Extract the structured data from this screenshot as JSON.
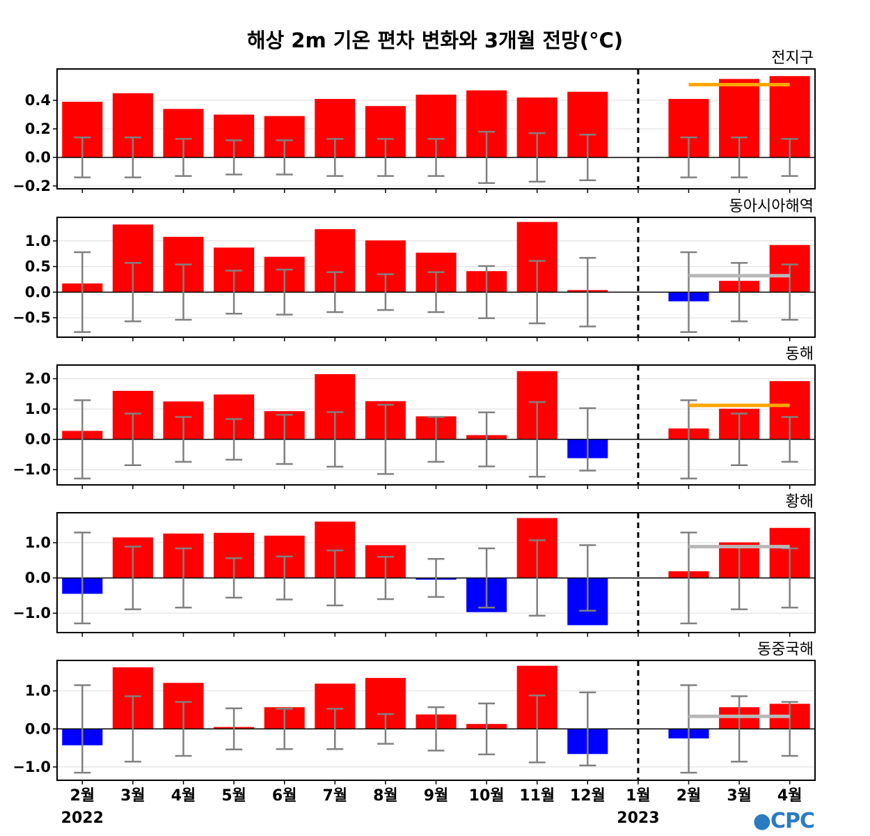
{
  "title": "해상 2m 기온 편차 변화와 3개월 전망(°C)",
  "logo": "CPC",
  "colors": {
    "positive": "#ff0000",
    "negative": "#0000ff",
    "errorbar": "#808080",
    "forecast_orange": "#ffa500",
    "forecast_gray": "#b8b8b8"
  },
  "months": [
    "2월",
    "3월",
    "4월",
    "5월",
    "6월",
    "7월",
    "8월",
    "9월",
    "10월",
    "11월",
    "12월",
    "1월",
    "2월",
    "3월",
    "4월"
  ],
  "years": {
    "y2022": "2022",
    "y2023": "2023"
  },
  "chart_data": [
    {
      "type": "bar",
      "region": "전지구",
      "ylim": [
        -0.22,
        0.62
      ],
      "yticks": [
        -0.2,
        0.0,
        0.2,
        0.4
      ],
      "ytick_labels": [
        "−0.2",
        "0.0",
        "0.2",
        "0.4"
      ],
      "values": [
        0.39,
        0.45,
        0.34,
        0.3,
        0.29,
        0.41,
        0.36,
        0.44,
        0.47,
        0.42,
        0.46,
        null,
        0.41,
        0.55,
        0.57
      ],
      "errorbar": [
        0.14,
        0.14,
        0.13,
        0.12,
        0.12,
        0.13,
        0.13,
        0.13,
        0.18,
        0.17,
        0.16,
        null,
        0.14,
        0.14,
        0.13
      ],
      "forecast_line": {
        "value": 0.51,
        "from": 12,
        "to": 14,
        "color": "orange"
      }
    },
    {
      "type": "bar",
      "region": "동아시아해역",
      "ylim": [
        -0.88,
        1.46
      ],
      "yticks": [
        -0.5,
        0.0,
        0.5,
        1.0
      ],
      "ytick_labels": [
        "−0.5",
        "0.0",
        "0.5",
        "1.0"
      ],
      "values": [
        0.17,
        1.32,
        1.08,
        0.87,
        0.69,
        1.23,
        1.01,
        0.77,
        0.41,
        1.37,
        0.04,
        null,
        -0.18,
        0.22,
        0.92
      ],
      "errorbar": [
        0.78,
        0.57,
        0.54,
        0.42,
        0.44,
        0.39,
        0.35,
        0.39,
        0.51,
        0.61,
        0.67,
        null,
        0.78,
        0.57,
        0.54
      ],
      "forecast_line": {
        "value": 0.32,
        "from": 12,
        "to": 14,
        "color": "gray"
      }
    },
    {
      "type": "bar",
      "region": "동해",
      "ylim": [
        -1.5,
        2.45
      ],
      "yticks": [
        -1.0,
        0.0,
        1.0,
        2.0
      ],
      "ytick_labels": [
        "−1.0",
        "0.0",
        "1.0",
        "2.0"
      ],
      "values": [
        0.28,
        1.6,
        1.25,
        1.48,
        0.93,
        2.15,
        1.26,
        0.76,
        0.14,
        2.25,
        -0.62,
        null,
        0.36,
        1.01,
        1.92
      ],
      "errorbar": [
        1.29,
        0.85,
        0.74,
        0.67,
        0.81,
        0.9,
        1.14,
        0.74,
        0.89,
        1.23,
        1.03,
        null,
        1.29,
        0.85,
        0.74
      ],
      "forecast_line": {
        "value": 1.12,
        "from": 12,
        "to": 14,
        "color": "orange"
      }
    },
    {
      "type": "bar",
      "region": "황해",
      "ylim": [
        -1.55,
        1.85
      ],
      "yticks": [
        -1.0,
        0.0,
        1.0
      ],
      "ytick_labels": [
        "−1.0",
        "0.0",
        "1.0"
      ],
      "values": [
        -0.45,
        1.15,
        1.26,
        1.28,
        1.2,
        1.6,
        0.93,
        -0.05,
        -0.97,
        1.7,
        -1.34,
        null,
        0.19,
        1.01,
        1.42
      ],
      "errorbar": [
        1.29,
        0.89,
        0.84,
        0.56,
        0.61,
        0.78,
        0.6,
        0.54,
        0.84,
        1.07,
        0.93,
        null,
        1.29,
        0.89,
        0.84
      ],
      "forecast_line": {
        "value": 0.89,
        "from": 12,
        "to": 14,
        "color": "gray"
      }
    },
    {
      "type": "bar",
      "region": "동중국해",
      "ylim": [
        -1.35,
        1.8
      ],
      "yticks": [
        -1.0,
        0.0,
        1.0
      ],
      "ytick_labels": [
        "−1.0",
        "0.0",
        "1.0"
      ],
      "values": [
        -0.43,
        1.62,
        1.21,
        0.05,
        0.57,
        1.19,
        1.34,
        0.38,
        0.13,
        1.66,
        -0.66,
        null,
        -0.25,
        0.57,
        0.66
      ],
      "errorbar": [
        1.15,
        0.86,
        0.71,
        0.54,
        0.53,
        0.53,
        0.39,
        0.57,
        0.67,
        0.88,
        0.96,
        null,
        1.15,
        0.86,
        0.71
      ],
      "forecast_line": {
        "value": 0.33,
        "from": 12,
        "to": 14,
        "color": "gray"
      }
    }
  ]
}
